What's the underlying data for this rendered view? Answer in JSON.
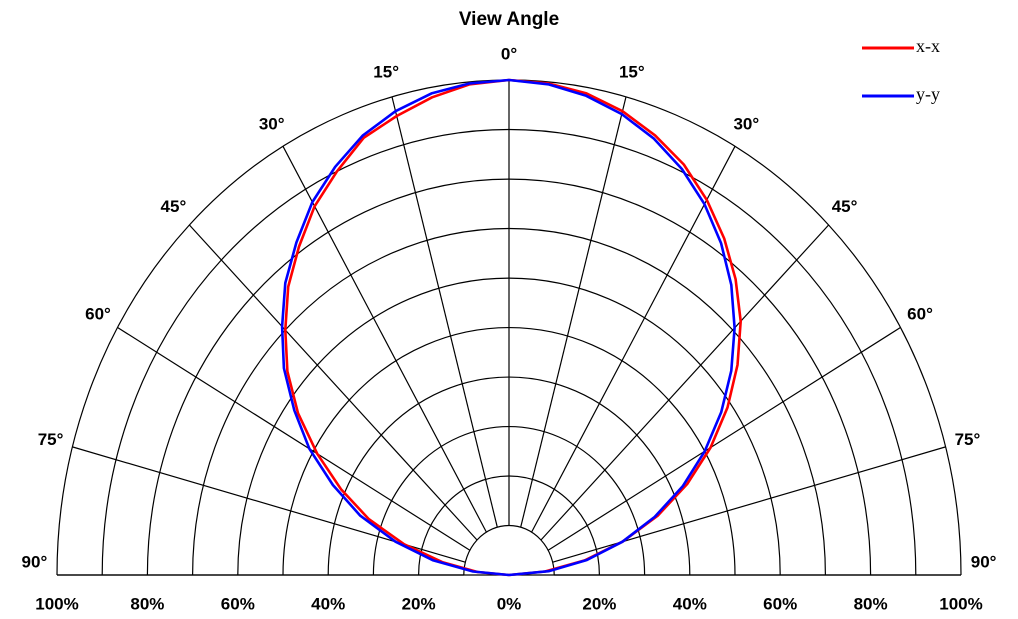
{
  "chart_data": {
    "type": "polar",
    "title": "View Angle",
    "angles": [
      -90,
      -85,
      -80,
      -75,
      -70,
      -65,
      -60,
      -55,
      -50,
      -45,
      -40,
      -35,
      -30,
      -25,
      -20,
      -15,
      -10,
      -5,
      0,
      5,
      10,
      15,
      20,
      25,
      30,
      35,
      40,
      45,
      50,
      55,
      60,
      65,
      70,
      75,
      80,
      85,
      90
    ],
    "series": [
      {
        "name": "x-x",
        "color": "#ff0000",
        "values": [
          0,
          7,
          15,
          24,
          33,
          41,
          49,
          57,
          64,
          70,
          76,
          81,
          86,
          90,
          94,
          96,
          98,
          99.5,
          100,
          99.7,
          98.8,
          97,
          94.5,
          91.5,
          87.5,
          83,
          78,
          72.5,
          66,
          59,
          51.5,
          43.5,
          35,
          26,
          17,
          8,
          0
        ]
      },
      {
        "name": "y-y",
        "color": "#0000ff",
        "values": [
          0,
          8,
          17,
          26,
          35,
          43,
          51,
          58,
          65,
          71,
          77,
          82,
          87,
          91,
          94.5,
          97,
          98.8,
          99.7,
          100,
          99.5,
          98.3,
          96.4,
          93.8,
          90.5,
          86.5,
          81.8,
          76.5,
          70.6,
          64.2,
          57.3,
          50,
          42.4,
          34.3,
          26,
          17.5,
          8.8,
          0
        ]
      }
    ],
    "rlim": [
      0,
      100
    ],
    "rgrid": [
      10,
      20,
      30,
      40,
      50,
      60,
      70,
      80,
      90,
      100
    ],
    "rticks": [
      {
        "value": 0,
        "label": "0%"
      },
      {
        "value": 20,
        "label": "20%"
      },
      {
        "value": 40,
        "label": "40%"
      },
      {
        "value": 60,
        "label": "60%"
      },
      {
        "value": 80,
        "label": "80%"
      },
      {
        "value": 100,
        "label": "100%"
      }
    ],
    "angle_ticks": [
      {
        "value": 0,
        "label": "0°"
      },
      {
        "value": 15,
        "label": "15°"
      },
      {
        "value": 30,
        "label": "30°"
      },
      {
        "value": 45,
        "label": "45°"
      },
      {
        "value": 60,
        "label": "60°"
      },
      {
        "value": 75,
        "label": "75°"
      },
      {
        "value": 90,
        "label": "90°"
      }
    ],
    "legend": "top-right"
  }
}
